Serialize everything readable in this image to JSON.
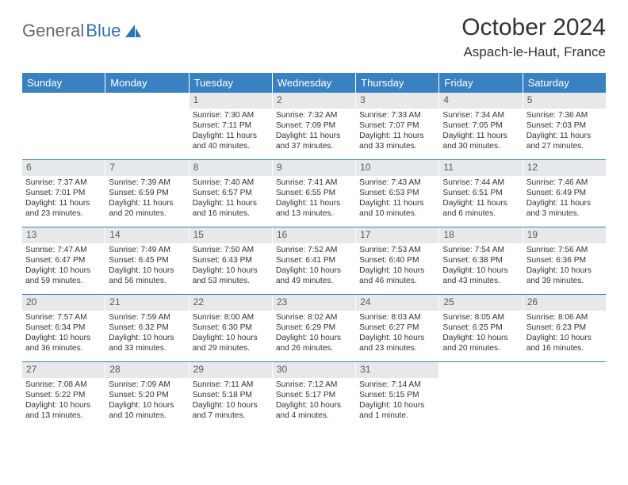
{
  "brand": {
    "part1": "General",
    "part2": "Blue"
  },
  "title": "October 2024",
  "location": "Aspach-le-Haut, France",
  "colors": {
    "header_bg": "#3a81c2",
    "header_text": "#ffffff",
    "daynum_bg": "#e7e8e9",
    "daynum_text": "#5a5a5a",
    "rule": "#3a81c2",
    "brand_gray": "#6a6a6a",
    "brand_blue": "#2e74b5"
  },
  "dayHeaders": [
    "Sunday",
    "Monday",
    "Tuesday",
    "Wednesday",
    "Thursday",
    "Friday",
    "Saturday"
  ],
  "leadingBlanks": 2,
  "days": [
    {
      "n": 1,
      "sunrise": "7:30 AM",
      "sunset": "7:11 PM",
      "daylight": "11 hours and 40 minutes."
    },
    {
      "n": 2,
      "sunrise": "7:32 AM",
      "sunset": "7:09 PM",
      "daylight": "11 hours and 37 minutes."
    },
    {
      "n": 3,
      "sunrise": "7:33 AM",
      "sunset": "7:07 PM",
      "daylight": "11 hours and 33 minutes."
    },
    {
      "n": 4,
      "sunrise": "7:34 AM",
      "sunset": "7:05 PM",
      "daylight": "11 hours and 30 minutes."
    },
    {
      "n": 5,
      "sunrise": "7:36 AM",
      "sunset": "7:03 PM",
      "daylight": "11 hours and 27 minutes."
    },
    {
      "n": 6,
      "sunrise": "7:37 AM",
      "sunset": "7:01 PM",
      "daylight": "11 hours and 23 minutes."
    },
    {
      "n": 7,
      "sunrise": "7:39 AM",
      "sunset": "6:59 PM",
      "daylight": "11 hours and 20 minutes."
    },
    {
      "n": 8,
      "sunrise": "7:40 AM",
      "sunset": "6:57 PM",
      "daylight": "11 hours and 16 minutes."
    },
    {
      "n": 9,
      "sunrise": "7:41 AM",
      "sunset": "6:55 PM",
      "daylight": "11 hours and 13 minutes."
    },
    {
      "n": 10,
      "sunrise": "7:43 AM",
      "sunset": "6:53 PM",
      "daylight": "11 hours and 10 minutes."
    },
    {
      "n": 11,
      "sunrise": "7:44 AM",
      "sunset": "6:51 PM",
      "daylight": "11 hours and 6 minutes."
    },
    {
      "n": 12,
      "sunrise": "7:46 AM",
      "sunset": "6:49 PM",
      "daylight": "11 hours and 3 minutes."
    },
    {
      "n": 13,
      "sunrise": "7:47 AM",
      "sunset": "6:47 PM",
      "daylight": "10 hours and 59 minutes."
    },
    {
      "n": 14,
      "sunrise": "7:49 AM",
      "sunset": "6:45 PM",
      "daylight": "10 hours and 56 minutes."
    },
    {
      "n": 15,
      "sunrise": "7:50 AM",
      "sunset": "6:43 PM",
      "daylight": "10 hours and 53 minutes."
    },
    {
      "n": 16,
      "sunrise": "7:52 AM",
      "sunset": "6:41 PM",
      "daylight": "10 hours and 49 minutes."
    },
    {
      "n": 17,
      "sunrise": "7:53 AM",
      "sunset": "6:40 PM",
      "daylight": "10 hours and 46 minutes."
    },
    {
      "n": 18,
      "sunrise": "7:54 AM",
      "sunset": "6:38 PM",
      "daylight": "10 hours and 43 minutes."
    },
    {
      "n": 19,
      "sunrise": "7:56 AM",
      "sunset": "6:36 PM",
      "daylight": "10 hours and 39 minutes."
    },
    {
      "n": 20,
      "sunrise": "7:57 AM",
      "sunset": "6:34 PM",
      "daylight": "10 hours and 36 minutes."
    },
    {
      "n": 21,
      "sunrise": "7:59 AM",
      "sunset": "6:32 PM",
      "daylight": "10 hours and 33 minutes."
    },
    {
      "n": 22,
      "sunrise": "8:00 AM",
      "sunset": "6:30 PM",
      "daylight": "10 hours and 29 minutes."
    },
    {
      "n": 23,
      "sunrise": "8:02 AM",
      "sunset": "6:29 PM",
      "daylight": "10 hours and 26 minutes."
    },
    {
      "n": 24,
      "sunrise": "8:03 AM",
      "sunset": "6:27 PM",
      "daylight": "10 hours and 23 minutes."
    },
    {
      "n": 25,
      "sunrise": "8:05 AM",
      "sunset": "6:25 PM",
      "daylight": "10 hours and 20 minutes."
    },
    {
      "n": 26,
      "sunrise": "8:06 AM",
      "sunset": "6:23 PM",
      "daylight": "10 hours and 16 minutes."
    },
    {
      "n": 27,
      "sunrise": "7:08 AM",
      "sunset": "5:22 PM",
      "daylight": "10 hours and 13 minutes."
    },
    {
      "n": 28,
      "sunrise": "7:09 AM",
      "sunset": "5:20 PM",
      "daylight": "10 hours and 10 minutes."
    },
    {
      "n": 29,
      "sunrise": "7:11 AM",
      "sunset": "5:18 PM",
      "daylight": "10 hours and 7 minutes."
    },
    {
      "n": 30,
      "sunrise": "7:12 AM",
      "sunset": "5:17 PM",
      "daylight": "10 hours and 4 minutes."
    },
    {
      "n": 31,
      "sunrise": "7:14 AM",
      "sunset": "5:15 PM",
      "daylight": "10 hours and 1 minute."
    }
  ],
  "labels": {
    "sunrise": "Sunrise: ",
    "sunset": "Sunset: ",
    "daylight": "Daylight: "
  }
}
